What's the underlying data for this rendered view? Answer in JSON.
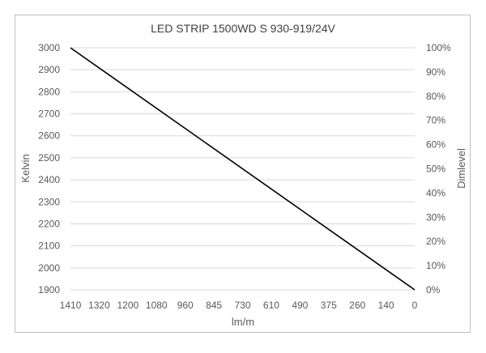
{
  "chart_data": {
    "type": "line",
    "title": "LED STRIP 1500WD S 930-919/24V",
    "xlabel": "lm/m",
    "ylabel": "Kelvin",
    "y2label": "Dimlevel",
    "x_ticks": [
      "1410",
      "1320",
      "1200",
      "1080",
      "960",
      "845",
      "730",
      "610",
      "490",
      "375",
      "260",
      "140",
      "0"
    ],
    "y_ticks": [
      "3000",
      "2900",
      "2800",
      "2700",
      "2600",
      "2500",
      "2400",
      "2300",
      "2200",
      "2100",
      "2000",
      "1900"
    ],
    "y2_ticks": [
      "100%",
      "90%",
      "80%",
      "70%",
      "60%",
      "50%",
      "40%",
      "30%",
      "20%",
      "10%",
      "0%"
    ],
    "ylim": [
      1900,
      3000
    ],
    "y2lim": [
      0,
      100
    ],
    "x_reversed": true,
    "grid": "horizontal",
    "series": [
      {
        "x": [
          1410,
          0
        ],
        "y": [
          3000,
          1900
        ],
        "color": "#000000"
      }
    ]
  }
}
